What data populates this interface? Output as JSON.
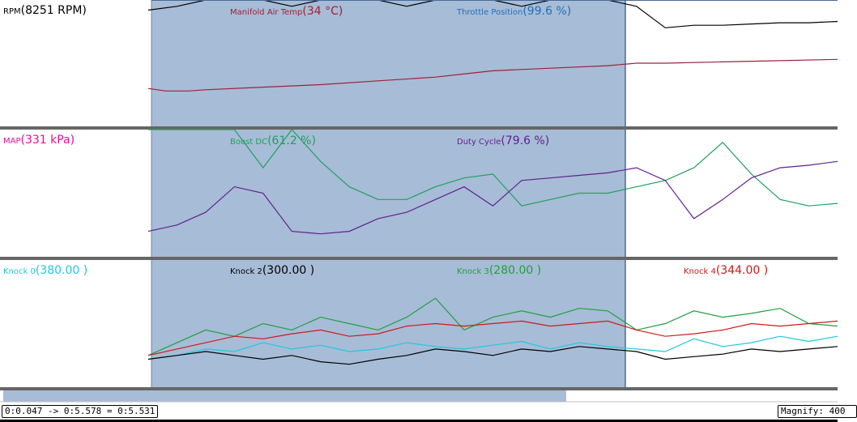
{
  "colors": {
    "rpm": "#000000",
    "manifold_air_temp": "#a0203a",
    "throttle_position": "#2070b8",
    "map": "#e0109a",
    "boost_dc": "#20a060",
    "duty_cycle": "#602090",
    "knock0": "#20c8e0",
    "knock2": "#000000",
    "knock3": "#20a040",
    "knock4": "#d01818",
    "selection": "#a7bcd6",
    "divider": "#666666"
  },
  "selection": {
    "start_s": 0.047,
    "end_s": 5.578
  },
  "chart_data": [
    {
      "type": "line",
      "panel": "top",
      "series": [
        {
          "name": "RPM",
          "label": "RPM",
          "value": "(8251 RPM)",
          "color_key": "rpm",
          "x": [
            0.0,
            0.5,
            1.0,
            1.5,
            2.0,
            2.5,
            3.0,
            3.5,
            4.0,
            4.5,
            5.0,
            5.5,
            6.0,
            6.5,
            7.0,
            7.5,
            8.0,
            8.5,
            9.0,
            9.5,
            10.0,
            10.5,
            11.0,
            11.5,
            12.0
          ],
          "y": [
            0.92,
            0.95,
            1.0,
            1.0,
            1.0,
            0.95,
            1.0,
            1.0,
            1.0,
            0.95,
            1.0,
            1.0,
            1.0,
            0.95,
            1.0,
            1.0,
            1.0,
            0.95,
            0.78,
            0.8,
            0.8,
            0.81,
            0.82,
            0.82,
            0.83
          ]
        },
        {
          "name": "Manifold Air Temp",
          "label": "Manifold Air Temp",
          "value": "(34 °C)",
          "color_key": "manifold_air_temp",
          "x": [
            0.0,
            0.3,
            0.7,
            1.0,
            2.0,
            3.0,
            4.0,
            5.0,
            5.6,
            6.0,
            7.0,
            8.0,
            8.5,
            9.0,
            10.0,
            11.0,
            12.0
          ],
          "y": [
            0.3,
            0.28,
            0.28,
            0.29,
            0.31,
            0.33,
            0.36,
            0.39,
            0.42,
            0.44,
            0.46,
            0.48,
            0.5,
            0.5,
            0.51,
            0.52,
            0.53
          ]
        },
        {
          "name": "Throttle Position",
          "label": "Throttle Position",
          "value": "(99.6 %)",
          "color_key": "throttle_position",
          "x": [],
          "y": []
        }
      ]
    },
    {
      "type": "line",
      "panel": "middle",
      "series": [
        {
          "name": "MAP",
          "label": "MAP",
          "value": "(331 kPa)",
          "color_key": "map",
          "x": [],
          "y": []
        },
        {
          "name": "Boost DC",
          "label": "Boost DC",
          "value": "(61.2 %)",
          "color_key": "boost_dc",
          "x": [
            0.0,
            0.5,
            1.0,
            1.5,
            2.0,
            2.5,
            3.0,
            3.5,
            4.0,
            4.5,
            5.0,
            5.5,
            6.0,
            6.5,
            7.0,
            7.5,
            8.0,
            8.5,
            9.0,
            9.5,
            10.0,
            10.5,
            11.0,
            11.5,
            12.0
          ],
          "y": [
            1.0,
            1.0,
            1.0,
            1.0,
            0.7,
            1.0,
            0.75,
            0.55,
            0.45,
            0.45,
            0.55,
            0.62,
            0.65,
            0.4,
            0.45,
            0.5,
            0.5,
            0.55,
            0.6,
            0.7,
            0.9,
            0.65,
            0.45,
            0.4,
            0.42
          ]
        },
        {
          "name": "Duty Cycle",
          "label": "Duty Cycle",
          "value": "(79.6 %)",
          "color_key": "duty_cycle",
          "x": [
            0.0,
            0.5,
            1.0,
            1.5,
            2.0,
            2.5,
            3.0,
            3.5,
            4.0,
            4.5,
            5.0,
            5.5,
            6.0,
            6.5,
            7.0,
            7.5,
            8.0,
            8.5,
            9.0,
            9.5,
            10.0,
            10.5,
            11.0,
            11.5,
            12.0
          ],
          "y": [
            0.2,
            0.25,
            0.35,
            0.55,
            0.5,
            0.2,
            0.18,
            0.2,
            0.3,
            0.35,
            0.45,
            0.55,
            0.4,
            0.6,
            0.62,
            0.64,
            0.66,
            0.7,
            0.6,
            0.3,
            0.45,
            0.62,
            0.7,
            0.72,
            0.75
          ]
        }
      ]
    },
    {
      "type": "line",
      "panel": "bottom",
      "series": [
        {
          "name": "Knock 0",
          "label": "Knock 0",
          "value": "(380.00 )",
          "color_key": "knock0",
          "x": [
            0.0,
            0.5,
            1.0,
            1.5,
            2.0,
            2.5,
            3.0,
            3.5,
            4.0,
            4.5,
            5.0,
            5.5,
            6.0,
            6.5,
            7.0,
            7.5,
            8.0,
            8.5,
            9.0,
            9.5,
            10.0,
            10.5,
            11.0,
            11.5,
            12.0
          ],
          "y": [
            0.22,
            0.25,
            0.3,
            0.28,
            0.35,
            0.3,
            0.33,
            0.28,
            0.3,
            0.35,
            0.32,
            0.3,
            0.33,
            0.36,
            0.3,
            0.35,
            0.32,
            0.3,
            0.28,
            0.38,
            0.32,
            0.35,
            0.4,
            0.36,
            0.4
          ]
        },
        {
          "name": "Knock 2",
          "label": "Knock 2",
          "value": "(300.00 )",
          "color_key": "knock2",
          "x": [
            0.0,
            0.5,
            1.0,
            1.5,
            2.0,
            2.5,
            3.0,
            3.5,
            4.0,
            4.5,
            5.0,
            5.5,
            6.0,
            6.5,
            7.0,
            7.5,
            8.0,
            8.5,
            9.0,
            9.5,
            10.0,
            10.5,
            11.0,
            11.5,
            12.0
          ],
          "y": [
            0.22,
            0.25,
            0.28,
            0.25,
            0.22,
            0.25,
            0.2,
            0.18,
            0.22,
            0.25,
            0.3,
            0.28,
            0.25,
            0.3,
            0.28,
            0.32,
            0.3,
            0.28,
            0.22,
            0.24,
            0.26,
            0.3,
            0.28,
            0.3,
            0.32
          ]
        },
        {
          "name": "Knock 3",
          "label": "Knock 3",
          "value": "(280.00 )",
          "color_key": "knock3",
          "x": [
            0.0,
            0.5,
            1.0,
            1.5,
            2.0,
            2.5,
            3.0,
            3.5,
            4.0,
            4.5,
            5.0,
            5.5,
            6.0,
            6.5,
            7.0,
            7.5,
            8.0,
            8.5,
            9.0,
            9.5,
            10.0,
            10.5,
            11.0,
            11.5,
            12.0
          ],
          "y": [
            0.25,
            0.35,
            0.45,
            0.4,
            0.5,
            0.45,
            0.55,
            0.5,
            0.45,
            0.55,
            0.7,
            0.45,
            0.55,
            0.6,
            0.55,
            0.62,
            0.6,
            0.45,
            0.5,
            0.6,
            0.55,
            0.58,
            0.62,
            0.5,
            0.48
          ]
        },
        {
          "name": "Knock 4",
          "label": "Knock 4",
          "value": "(344.00 )",
          "color_key": "knock4",
          "x": [
            0.0,
            0.5,
            1.0,
            1.5,
            2.0,
            2.5,
            3.0,
            3.5,
            4.0,
            4.5,
            5.0,
            5.5,
            6.0,
            6.5,
            7.0,
            7.5,
            8.0,
            8.5,
            9.0,
            9.5,
            10.0,
            10.5,
            11.0,
            11.5,
            12.0
          ],
          "y": [
            0.25,
            0.3,
            0.35,
            0.4,
            0.38,
            0.42,
            0.45,
            0.4,
            0.42,
            0.48,
            0.5,
            0.48,
            0.5,
            0.52,
            0.48,
            0.5,
            0.52,
            0.45,
            0.4,
            0.42,
            0.45,
            0.5,
            0.48,
            0.5,
            0.52
          ]
        }
      ]
    }
  ],
  "footer": {
    "range_text": "0:0.047  ->  0:5.578  =  0:5.531",
    "magnify_text": "Magnify: 400"
  }
}
